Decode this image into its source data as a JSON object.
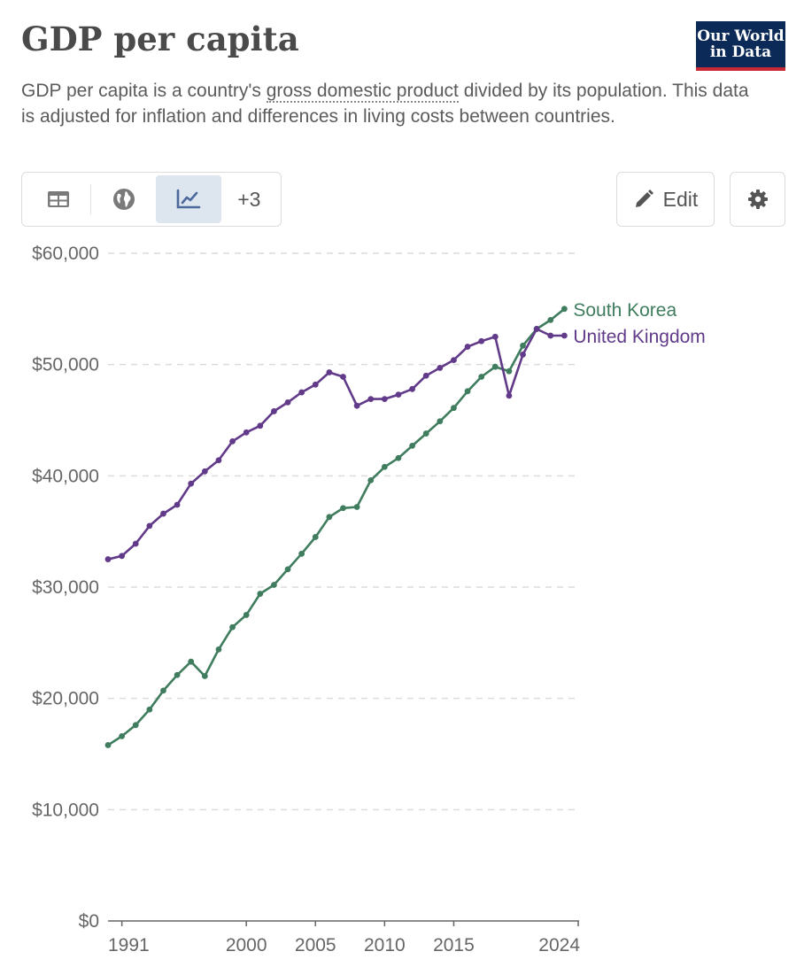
{
  "header": {
    "title": "GDP per capita",
    "subtitle_pre": "GDP per capita is a country's ",
    "subtitle_term": "gross domestic product",
    "subtitle_post": " divided by its population. This data is adjusted for inflation and differences in living costs between countries.",
    "logo_line1": "Our World",
    "logo_line2": "in Data"
  },
  "toolbar": {
    "tabs": [
      {
        "name": "table",
        "icon": "table-icon"
      },
      {
        "name": "map",
        "icon": "globe-icon"
      },
      {
        "name": "chart",
        "icon": "line-chart-icon",
        "active": true
      }
    ],
    "more_label": "+3",
    "edit_label": "Edit",
    "edit_icon": "pencil-icon",
    "settings_icon": "gear-icon"
  },
  "colors": {
    "south_korea": "#3f7d5e",
    "united_kingdom": "#623a8a",
    "grid": "#dcdcdc",
    "axis": "#666666"
  },
  "chart_data": {
    "type": "line",
    "title": "",
    "xlabel": "",
    "ylabel": "",
    "xlim": [
      1990,
      2024
    ],
    "ylim": [
      0,
      60000
    ],
    "x_ticks": [
      1991,
      2000,
      2005,
      2010,
      2015,
      2024
    ],
    "y_ticks": [
      0,
      10000,
      20000,
      30000,
      40000,
      50000,
      60000
    ],
    "y_tick_labels": [
      "$0",
      "$10,000",
      "$20,000",
      "$30,000",
      "$40,000",
      "$50,000",
      "$60,000"
    ],
    "grid": "horizontal dashed",
    "legend": "inline labels at line ends",
    "x": [
      1990,
      1991,
      1992,
      1993,
      1994,
      1995,
      1996,
      1997,
      1998,
      1999,
      2000,
      2001,
      2002,
      2003,
      2004,
      2005,
      2006,
      2007,
      2008,
      2009,
      2010,
      2011,
      2012,
      2013,
      2014,
      2015,
      2016,
      2017,
      2018,
      2019,
      2020,
      2021,
      2022,
      2023,
      2024
    ],
    "series": [
      {
        "name": "South Korea",
        "color": "#3f7d5e",
        "values": [
          15800,
          16600,
          17600,
          19000,
          20700,
          22100,
          23300,
          22000,
          24400,
          26400,
          27500,
          29400,
          30200,
          31600,
          33000,
          34500,
          36300,
          37100,
          37200,
          39600,
          40800,
          41600,
          42700,
          43800,
          44900,
          46100,
          47600,
          48900,
          49800,
          49400,
          51700,
          53200,
          54000,
          55000,
          null
        ]
      },
      {
        "name": "United Kingdom",
        "color": "#623a8a",
        "values": [
          32500,
          32800,
          33900,
          35500,
          36600,
          37400,
          39300,
          40400,
          41400,
          43100,
          43900,
          44500,
          45800,
          46600,
          47500,
          48200,
          49300,
          48900,
          46300,
          46900,
          46900,
          47300,
          47800,
          49000,
          49700,
          50400,
          51600,
          52100,
          52500,
          47200,
          50900,
          53200,
          52600,
          52600,
          null
        ]
      }
    ]
  }
}
